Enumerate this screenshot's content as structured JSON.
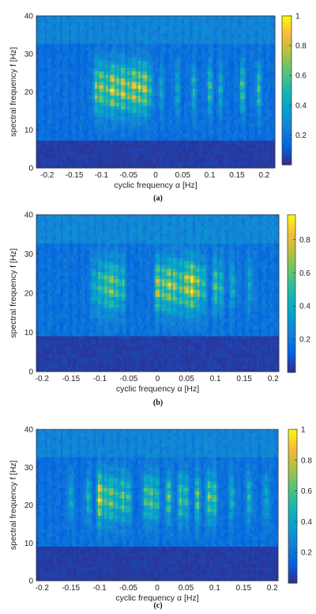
{
  "chart_data": [
    {
      "type": "heatmap",
      "panel_label": "(a)",
      "xlabel": "cyclic frequency α [Hz]",
      "ylabel": "spectral frequency f [Hz]",
      "xlim": [
        -0.22,
        0.22
      ],
      "ylim": [
        0,
        40
      ],
      "xticks": [
        -0.2,
        -0.15,
        -0.1,
        -0.05,
        0,
        0.05,
        0.1,
        0.15,
        0.2
      ],
      "xtick_labels": [
        "-0.2",
        "-0.15",
        "-0.1",
        "-0.05",
        "0",
        "0.05",
        "0.1",
        "0.15",
        "0.2"
      ],
      "yticks": [
        0,
        10,
        20,
        30,
        40
      ],
      "ytick_labels": [
        "0",
        "10",
        "20",
        "30",
        "40"
      ],
      "colorbar": {
        "range": [
          0,
          1
        ],
        "ticks": [
          0.2,
          0.4,
          0.6,
          0.8,
          1
        ],
        "tick_labels": [
          "0.2",
          "0.4",
          "0.6",
          "0.8",
          "1"
        ],
        "colormap": "parula"
      },
      "f_center": 21,
      "f_spread": 6.5,
      "low_band_max": 7,
      "hot_lines": [
        {
          "alpha": -0.11,
          "peak": 0.65
        },
        {
          "alpha": -0.1,
          "peak": 0.8
        },
        {
          "alpha": -0.09,
          "peak": 0.55
        },
        {
          "alpha": -0.08,
          "peak": 0.95
        },
        {
          "alpha": -0.07,
          "peak": 0.7
        },
        {
          "alpha": -0.06,
          "peak": 0.9
        },
        {
          "alpha": -0.05,
          "peak": 0.6
        },
        {
          "alpha": -0.04,
          "peak": 0.95
        },
        {
          "alpha": -0.03,
          "peak": 0.75
        },
        {
          "alpha": -0.02,
          "peak": 0.85
        },
        {
          "alpha": -0.01,
          "peak": 0.45
        },
        {
          "alpha": 0.01,
          "peak": 0.3
        },
        {
          "alpha": 0.04,
          "peak": 0.35
        },
        {
          "alpha": 0.07,
          "peak": 0.4
        },
        {
          "alpha": 0.1,
          "peak": 0.5
        },
        {
          "alpha": 0.12,
          "peak": 0.35
        },
        {
          "alpha": 0.16,
          "peak": 0.55
        },
        {
          "alpha": 0.19,
          "peak": 0.5
        }
      ]
    },
    {
      "type": "heatmap",
      "panel_label": "(b)",
      "xlabel": "cyclic frequency α [Hz]",
      "ylabel": "spectral frequency f [Hz]",
      "xlim": [
        -0.21,
        0.21
      ],
      "ylim": [
        0,
        40
      ],
      "xticks": [
        -0.2,
        -0.15,
        -0.1,
        -0.05,
        0,
        0.05,
        0.1,
        0.15,
        0.2
      ],
      "xtick_labels": [
        "-0.2",
        "-0.15",
        "-0.1",
        "-0.05",
        "0",
        "0.05",
        "0.1",
        "0.15",
        "0.2"
      ],
      "yticks": [
        0,
        10,
        20,
        30,
        40
      ],
      "ytick_labels": [
        "0",
        "10",
        "20",
        "30",
        "40"
      ],
      "colorbar": {
        "range": [
          0,
          0.95
        ],
        "ticks": [
          0.2,
          0.4,
          0.6,
          0.8
        ],
        "tick_labels": [
          "0.2",
          "0.4",
          "0.6",
          "0.8"
        ],
        "colormap": "parula"
      },
      "f_center": 22,
      "f_spread": 6.5,
      "low_band_max": 9,
      "hot_lines": [
        {
          "alpha": -0.11,
          "peak": 0.35
        },
        {
          "alpha": -0.1,
          "peak": 0.45
        },
        {
          "alpha": -0.09,
          "peak": 0.55
        },
        {
          "alpha": -0.08,
          "peak": 0.7
        },
        {
          "alpha": -0.07,
          "peak": 0.5
        },
        {
          "alpha": -0.06,
          "peak": 0.45
        },
        {
          "alpha": 0.0,
          "peak": 0.75
        },
        {
          "alpha": 0.01,
          "peak": 0.6
        },
        {
          "alpha": 0.02,
          "peak": 0.8
        },
        {
          "alpha": 0.03,
          "peak": 0.65
        },
        {
          "alpha": 0.04,
          "peak": 0.55
        },
        {
          "alpha": 0.05,
          "peak": 0.8
        },
        {
          "alpha": 0.06,
          "peak": 0.95
        },
        {
          "alpha": 0.07,
          "peak": 0.6
        },
        {
          "alpha": 0.08,
          "peak": 0.45
        },
        {
          "alpha": 0.1,
          "peak": 0.55
        },
        {
          "alpha": 0.11,
          "peak": 0.4
        },
        {
          "alpha": 0.13,
          "peak": 0.35
        },
        {
          "alpha": 0.16,
          "peak": 0.3
        }
      ]
    },
    {
      "type": "heatmap",
      "panel_label": "(c)",
      "xlabel": "cyclic frequency α [Hz]",
      "ylabel": "spectral frequency f [Hz]",
      "xlim": [
        -0.21,
        0.21
      ],
      "ylim": [
        0,
        40
      ],
      "xticks": [
        -0.2,
        -0.15,
        -0.1,
        -0.05,
        0,
        0.05,
        0.1,
        0.15,
        0.2
      ],
      "xtick_labels": [
        "-0.2",
        "-0.15",
        "-0.1",
        "-0.05",
        "0",
        "0.05",
        "0.1",
        "0.15",
        "0.2"
      ],
      "yticks": [
        0,
        10,
        20,
        30,
        40
      ],
      "ytick_labels": [
        "0",
        "10",
        "20",
        "30",
        "40"
      ],
      "colorbar": {
        "range": [
          0,
          1
        ],
        "ticks": [
          0.2,
          0.4,
          0.6,
          0.8,
          1
        ],
        "tick_labels": [
          "0.2",
          "0.4",
          "0.6",
          "0.8",
          "1"
        ],
        "colormap": "parula"
      },
      "f_center": 22,
      "f_spread": 6.5,
      "low_band_max": 9,
      "hot_lines": [
        {
          "alpha": -0.15,
          "peak": 0.35
        },
        {
          "alpha": -0.12,
          "peak": 0.4
        },
        {
          "alpha": -0.1,
          "peak": 0.95
        },
        {
          "alpha": -0.09,
          "peak": 0.55
        },
        {
          "alpha": -0.08,
          "peak": 0.7
        },
        {
          "alpha": -0.07,
          "peak": 0.45
        },
        {
          "alpha": -0.06,
          "peak": 0.6
        },
        {
          "alpha": -0.05,
          "peak": 0.5
        },
        {
          "alpha": -0.02,
          "peak": 0.55
        },
        {
          "alpha": -0.01,
          "peak": 0.6
        },
        {
          "alpha": 0.0,
          "peak": 0.45
        },
        {
          "alpha": 0.02,
          "peak": 0.65
        },
        {
          "alpha": 0.04,
          "peak": 0.55
        },
        {
          "alpha": 0.05,
          "peak": 0.5
        },
        {
          "alpha": 0.07,
          "peak": 0.6
        },
        {
          "alpha": 0.09,
          "peak": 0.65
        },
        {
          "alpha": 0.1,
          "peak": 0.55
        },
        {
          "alpha": 0.13,
          "peak": 0.4
        },
        {
          "alpha": 0.16,
          "peak": 0.45
        },
        {
          "alpha": 0.19,
          "peak": 0.35
        }
      ]
    }
  ]
}
